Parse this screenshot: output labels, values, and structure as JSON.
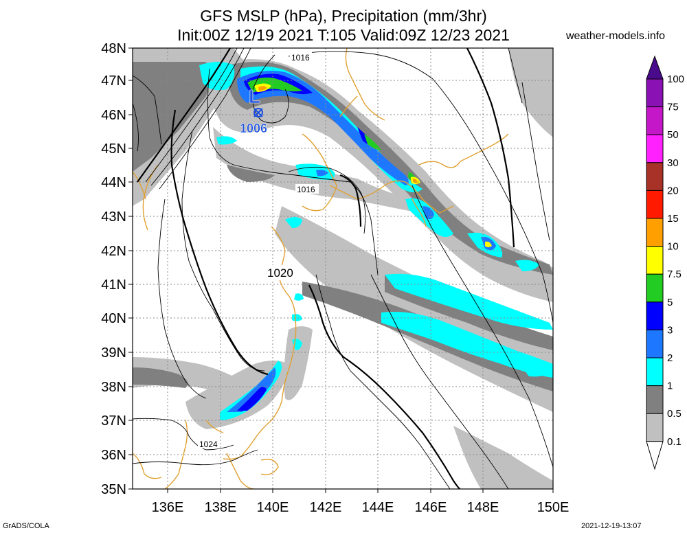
{
  "header": {
    "title_line1": "GFS MSLP (hPa), Precipitation (mm/3hr)",
    "title_line2": "Init:00Z 12/19 2021 T:105 Valid:09Z 12/23 2021",
    "site": "weather-models.info"
  },
  "footer": {
    "software": "GrADS/COLA",
    "timestamp": "2021-12-19-13:07"
  },
  "map": {
    "lat_labels": [
      "48N",
      "47N",
      "46N",
      "45N",
      "44N",
      "43N",
      "42N",
      "41N",
      "40N",
      "39N",
      "38N",
      "37N",
      "36N",
      "35N"
    ],
    "lon_labels": [
      "136E",
      "138E",
      "140E",
      "142E",
      "144E",
      "146E",
      "148E",
      "150E"
    ],
    "low_center": {
      "symbol": "L",
      "pressure": "1006"
    },
    "isobar_labels": [
      "1016",
      "1016",
      "1020",
      "1024"
    ]
  },
  "colorbar": {
    "labels": [
      "100",
      "75",
      "50",
      "30",
      "20",
      "15",
      "10",
      "7.5",
      "5",
      "3",
      "2",
      "1",
      "0.5",
      "0.1"
    ],
    "colors": [
      "#4a0a8c",
      "#8a12b4",
      "#c418c8",
      "#ff22ff",
      "#a83228",
      "#ff1a00",
      "#ffa000",
      "#ffff00",
      "#22cc22",
      "#0000ff",
      "#1e78ff",
      "#00ffff",
      "#808080",
      "#c0c0c0",
      "#ffffff"
    ]
  }
}
